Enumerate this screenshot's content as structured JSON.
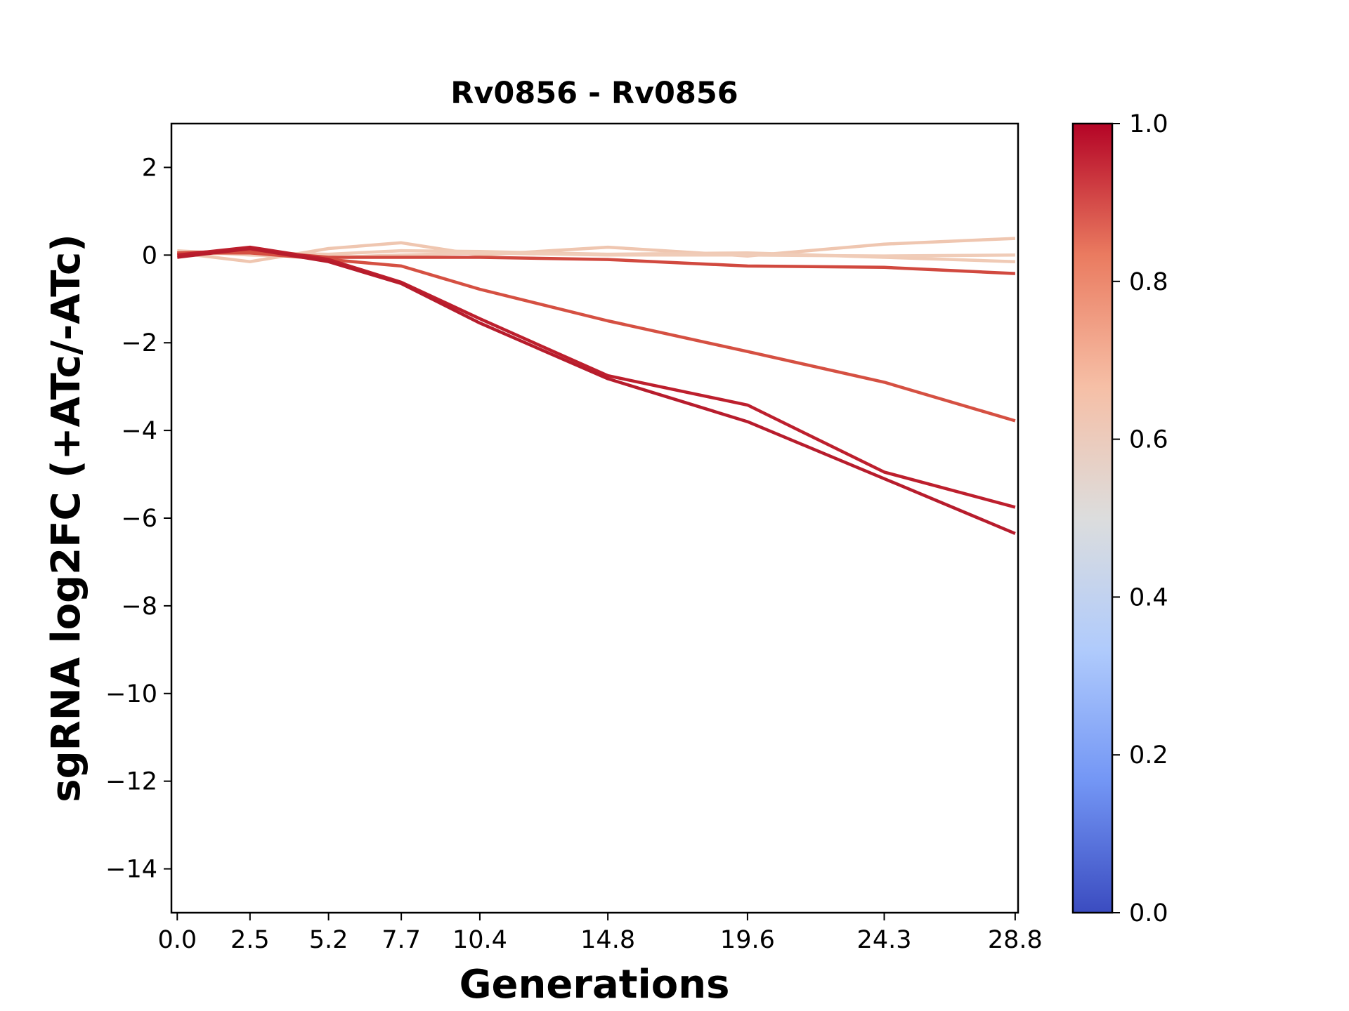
{
  "chart_data": {
    "type": "line",
    "title": "Rv0856 - Rv0856",
    "xlabel": "Generations",
    "ylabel": "sgRNA log2FC (+ATc/-ATc)",
    "x": [
      0.0,
      2.5,
      5.2,
      7.7,
      10.4,
      14.8,
      19.6,
      24.3,
      28.8
    ],
    "x_tick_labels": [
      "0.0",
      "2.5",
      "5.2",
      "7.7",
      "10.4",
      "14.8",
      "19.6",
      "24.3",
      "28.8"
    ],
    "xlim": [
      -0.2,
      28.9
    ],
    "ylim": [
      -15,
      3
    ],
    "y_ticks": [
      2,
      0,
      -2,
      -4,
      -6,
      -8,
      -10,
      -12,
      -14
    ],
    "y_tick_labels": [
      "2",
      "0",
      "−2",
      "−4",
      "−6",
      "−8",
      "−10",
      "−12",
      "−14"
    ],
    "grid": false,
    "series": [
      {
        "color_value": 0.64,
        "color": "#efc6b0",
        "values": [
          0.05,
          -0.15,
          0.15,
          0.28,
          0.0,
          0.18,
          -0.02,
          0.25,
          0.38
        ]
      },
      {
        "color_value": 0.63,
        "color": "#f0cab5",
        "values": [
          0.02,
          0.05,
          0.02,
          0.1,
          0.08,
          0.02,
          0.05,
          -0.05,
          -0.15
        ]
      },
      {
        "color_value": 0.62,
        "color": "#f0ccb8",
        "values": [
          0.1,
          0.0,
          -0.05,
          0.0,
          0.05,
          0.0,
          0.0,
          -0.02,
          0.0
        ]
      },
      {
        "color_value": 0.9,
        "color": "#d1493f",
        "values": [
          0.05,
          0.1,
          -0.05,
          -0.05,
          -0.05,
          -0.1,
          -0.25,
          -0.28,
          -0.42
        ]
      },
      {
        "color_value": 0.88,
        "color": "#d55042",
        "values": [
          0.05,
          0.05,
          -0.1,
          -0.25,
          -0.78,
          -1.5,
          -2.2,
          -2.9,
          -3.78
        ]
      },
      {
        "color_value": 0.96,
        "color": "#bd1f2d",
        "values": [
          0.0,
          0.18,
          -0.1,
          -0.62,
          -1.45,
          -2.75,
          -3.42,
          -4.95,
          -5.75
        ]
      },
      {
        "color_value": 0.98,
        "color": "#b71c2c",
        "values": [
          -0.05,
          0.15,
          -0.15,
          -0.65,
          -1.55,
          -2.82,
          -3.8,
          -5.1,
          -6.35
        ]
      }
    ],
    "colorbar": {
      "range": [
        0.0,
        1.0
      ],
      "ticks": [
        0.0,
        0.2,
        0.4,
        0.6,
        0.8,
        1.0
      ],
      "tick_labels": [
        "0.0",
        "0.2",
        "0.4",
        "0.6",
        "0.8",
        "1.0"
      ],
      "colormap": "coolwarm",
      "stops": [
        "#3b4cc0",
        "#7396f5",
        "#b0cbfc",
        "#dcdddd",
        "#f6bfa6",
        "#ea7b60",
        "#b40426"
      ]
    }
  }
}
